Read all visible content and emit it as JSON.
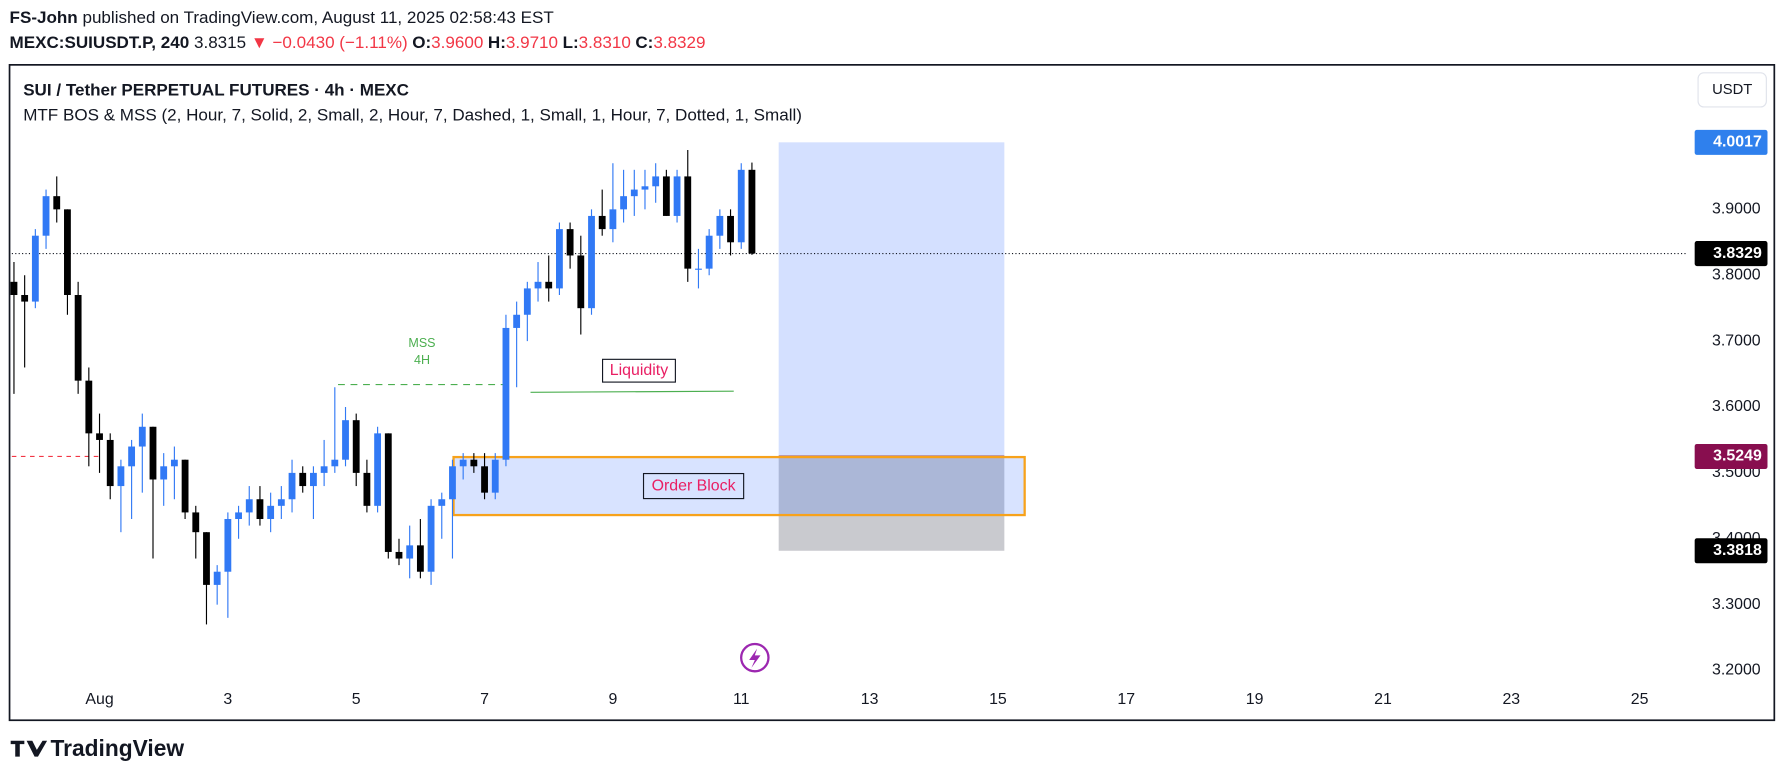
{
  "header": {
    "author": "FS-John",
    "published": "published on TradingView.com, August 11, 2025 02:58:43 EST",
    "symbol": "MEXC:SUIUSDT.P, 240",
    "last": "3.8315",
    "change": "▼ −0.0430 (−1.11%)",
    "ohlc": [
      {
        "k": "O:",
        "v": "3.9600"
      },
      {
        "k": "H:",
        "v": "3.9710"
      },
      {
        "k": "L:",
        "v": "3.8310"
      },
      {
        "k": "C:",
        "v": "3.8329"
      }
    ]
  },
  "chart_data": {
    "type": "candlestick",
    "title": "SUI / Tether PERPETUAL FUTURES · 4h · MEXC",
    "indicator": "MTF BOS & MSS (2, Hour, 7, Solid, 2, Small, 2, Hour, 7, Dashed, 1, Small, 1, Hour, 7, Dotted, 1, Small)",
    "currency": "USDT",
    "up_color": "#3179f5",
    "down_color": "#000000",
    "open": [
      3.79,
      3.77,
      3.76,
      3.86,
      3.92,
      3.9,
      3.77,
      3.64,
      3.56,
      3.55,
      3.48,
      3.51,
      3.54,
      3.57,
      3.49,
      3.51,
      3.52,
      3.44,
      3.41,
      3.33,
      3.35,
      3.43,
      3.44,
      3.46,
      3.43,
      3.45,
      3.46,
      3.5,
      3.48,
      3.5,
      3.51,
      3.52,
      3.58,
      3.5,
      3.45,
      3.56,
      3.38,
      3.37,
      3.39,
      3.35,
      3.45,
      3.46,
      3.51,
      3.52,
      3.51,
      3.47,
      3.52,
      3.72,
      3.74,
      3.78,
      3.79,
      3.78,
      3.87,
      3.83,
      3.75,
      3.89,
      3.87,
      3.9,
      3.92,
      3.93,
      3.935,
      3.95,
      3.89,
      3.95,
      3.81,
      3.81,
      3.86,
      3.89,
      3.85,
      3.96
    ],
    "high": [
      3.82,
      3.8,
      3.87,
      3.93,
      3.95,
      3.9,
      3.79,
      3.66,
      3.59,
      3.56,
      3.52,
      3.55,
      3.59,
      3.57,
      3.53,
      3.54,
      3.52,
      3.45,
      3.41,
      3.36,
      3.44,
      3.45,
      3.48,
      3.48,
      3.47,
      3.48,
      3.52,
      3.51,
      3.51,
      3.55,
      3.63,
      3.6,
      3.59,
      3.52,
      3.57,
      3.56,
      3.4,
      3.42,
      3.43,
      3.46,
      3.47,
      3.52,
      3.53,
      3.53,
      3.53,
      3.53,
      3.74,
      3.76,
      3.79,
      3.82,
      3.83,
      3.88,
      3.88,
      3.86,
      3.9,
      3.93,
      3.97,
      3.96,
      3.96,
      3.96,
      3.97,
      3.96,
      3.96,
      3.99,
      3.84,
      3.87,
      3.9,
      3.9,
      3.97,
      3.971
    ],
    "low": [
      3.62,
      3.66,
      3.75,
      3.84,
      3.88,
      3.74,
      3.62,
      3.51,
      3.5,
      3.46,
      3.41,
      3.43,
      3.47,
      3.37,
      3.45,
      3.46,
      3.43,
      3.37,
      3.27,
      3.3,
      3.28,
      3.4,
      3.42,
      3.42,
      3.41,
      3.43,
      3.44,
      3.47,
      3.43,
      3.48,
      3.5,
      3.51,
      3.48,
      3.44,
      3.44,
      3.37,
      3.36,
      3.34,
      3.34,
      3.33,
      3.4,
      3.37,
      3.49,
      3.5,
      3.46,
      3.46,
      3.51,
      3.63,
      3.7,
      3.76,
      3.76,
      3.77,
      3.81,
      3.71,
      3.74,
      3.86,
      3.85,
      3.88,
      3.89,
      3.9,
      3.91,
      3.89,
      3.88,
      3.79,
      3.78,
      3.8,
      3.84,
      3.83,
      3.84,
      3.831
    ],
    "close": [
      3.77,
      3.76,
      3.86,
      3.92,
      3.9,
      3.77,
      3.64,
      3.56,
      3.55,
      3.48,
      3.51,
      3.54,
      3.57,
      3.49,
      3.51,
      3.52,
      3.44,
      3.41,
      3.33,
      3.35,
      3.43,
      3.44,
      3.46,
      3.43,
      3.45,
      3.46,
      3.5,
      3.48,
      3.5,
      3.51,
      3.52,
      3.58,
      3.5,
      3.45,
      3.56,
      3.38,
      3.37,
      3.39,
      3.35,
      3.45,
      3.46,
      3.51,
      3.52,
      3.51,
      3.47,
      3.52,
      3.72,
      3.74,
      3.78,
      3.79,
      3.78,
      3.87,
      3.83,
      3.75,
      3.89,
      3.87,
      3.9,
      3.92,
      3.93,
      3.935,
      3.95,
      3.89,
      3.95,
      3.81,
      3.81,
      3.86,
      3.89,
      3.85,
      3.96,
      3.8329
    ],
    "xlim": [
      -0.2,
      156.4
    ],
    "xticks": [
      {
        "value": 8,
        "label": "Aug"
      },
      {
        "value": 20,
        "label": "3"
      },
      {
        "value": 32,
        "label": "5"
      },
      {
        "value": 44,
        "label": "7"
      },
      {
        "value": 56,
        "label": "9"
      },
      {
        "value": 68,
        "label": "11"
      },
      {
        "value": 80,
        "label": "13"
      },
      {
        "value": 92,
        "label": "15"
      },
      {
        "value": 104,
        "label": "17"
      },
      {
        "value": 116,
        "label": "19"
      },
      {
        "value": 128,
        "label": "21"
      },
      {
        "value": 140,
        "label": "23"
      },
      {
        "value": 152,
        "label": "25"
      }
    ],
    "ylim": [
      3.18,
      4.12
    ],
    "yticks": [
      {
        "value": 3.2,
        "label": "3.2000"
      },
      {
        "value": 3.3,
        "label": "3.3000"
      },
      {
        "value": 3.4,
        "label": "3.4000"
      },
      {
        "value": 3.5,
        "label": "3.5000"
      },
      {
        "value": 3.6,
        "label": "3.6000"
      },
      {
        "value": 3.7,
        "label": "3.7000"
      },
      {
        "value": 3.8,
        "label": "3.8000"
      },
      {
        "value": 3.9,
        "label": "3.9000"
      }
    ],
    "price_labels": [
      {
        "value": 4.0017,
        "color": "#2f80ed"
      },
      {
        "value": 3.8329,
        "color": "#000000",
        "line": "dotted"
      },
      {
        "value": 3.5249,
        "color": "#880e4f",
        "line": "dashed",
        "line_x": [
          -0.2,
          8.3
        ]
      },
      {
        "value": 3.3818,
        "color": "#000000"
      }
    ],
    "position": {
      "target": 4.0017,
      "entry": 3.5249,
      "stop": 3.3818,
      "x": [
        71.5,
        92.6
      ]
    },
    "order_block": {
      "label": "Order Block",
      "top": 3.524,
      "bottom": 3.436,
      "x": [
        41.1,
        94.5
      ]
    },
    "liquidity": {
      "label": "Liquidity",
      "level": 3.624,
      "x": [
        48.3,
        67.3
      ]
    },
    "mss": {
      "label": [
        "MSS",
        "4H"
      ],
      "level": 3.634,
      "x": [
        30.3,
        46
      ]
    }
  },
  "footer": {
    "brand": "TradingView"
  }
}
